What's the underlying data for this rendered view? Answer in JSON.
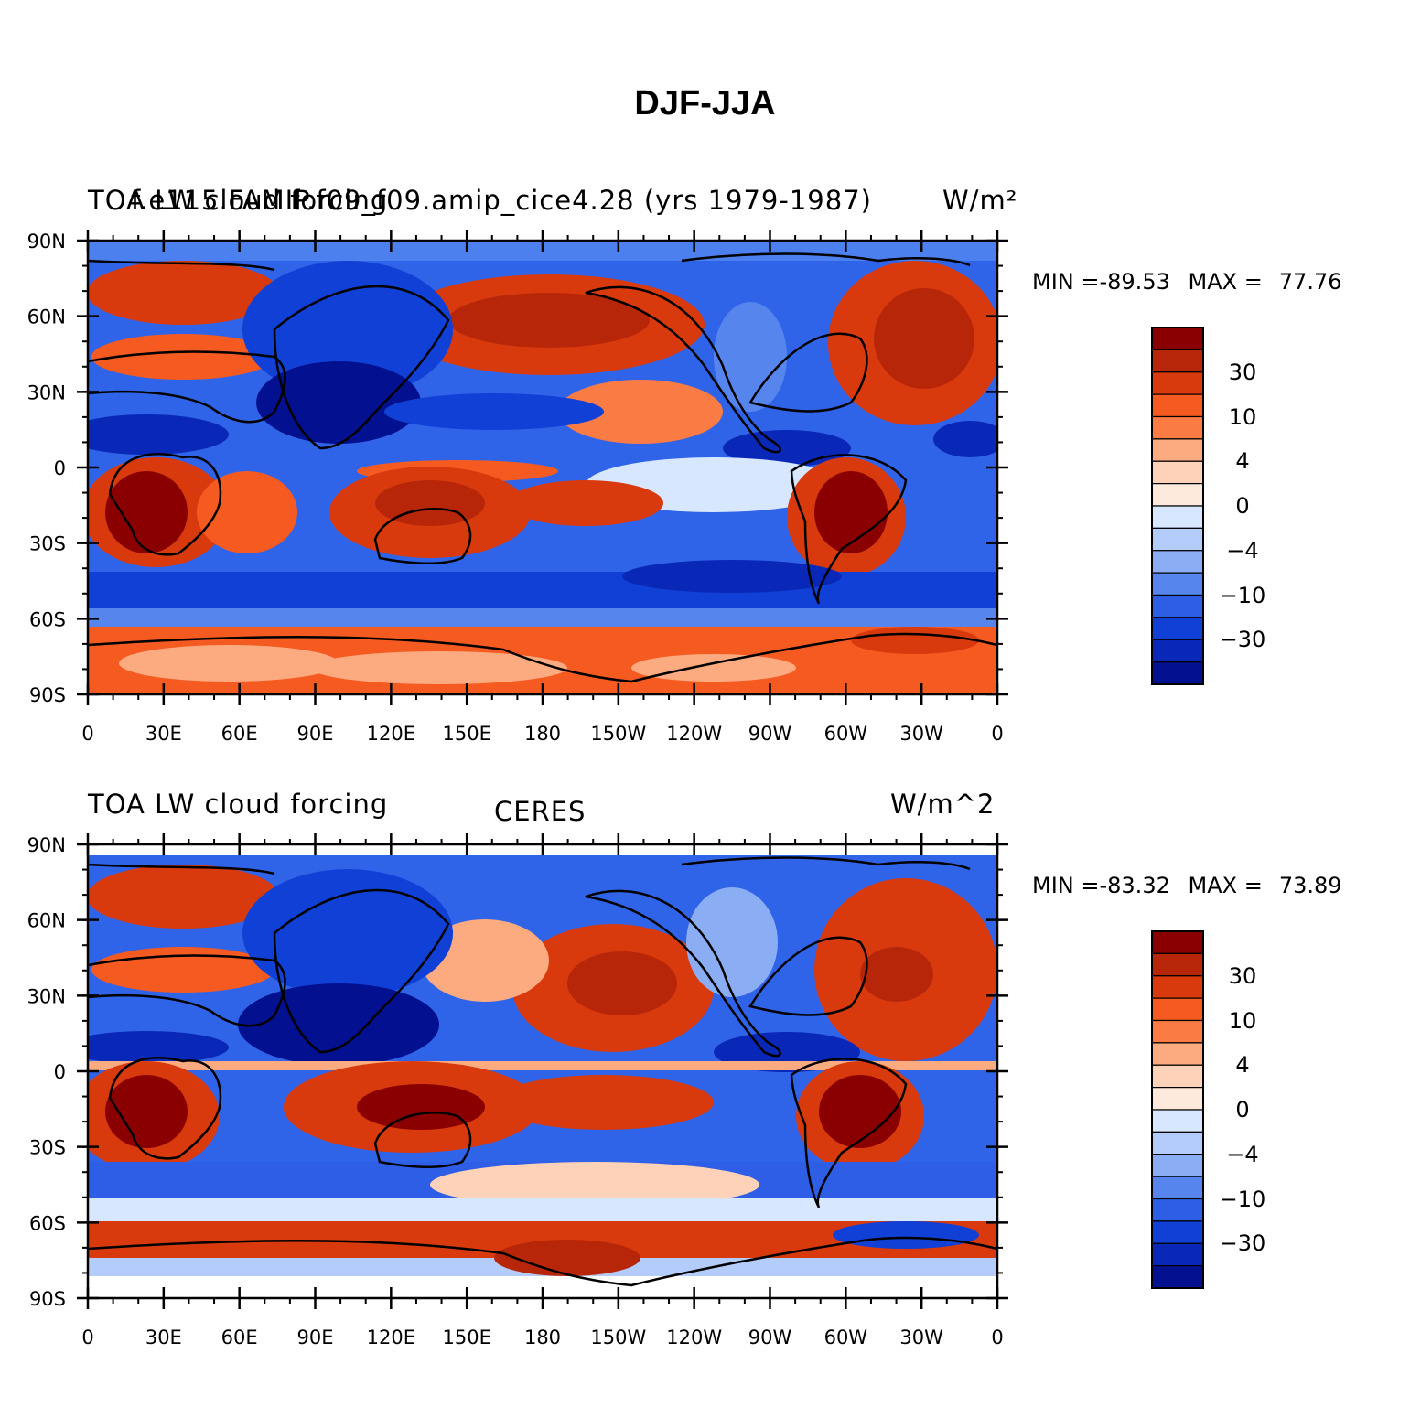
{
  "title": "DJF-JJA",
  "panels": [
    {
      "id": "model",
      "left_label": "TOA LW cloud forcing",
      "center_label": "f.e115.FAMIP.f09_f09.amip_cice4.28 (yrs 1979-1987)",
      "right_label": "W/m²",
      "min_label": "MIN = ",
      "min_value": "-89.53",
      "max_label": "MAX = ",
      "max_value": "77.76"
    },
    {
      "id": "obs",
      "left_label": "TOA LW cloud forcing",
      "center_label": "CERES",
      "right_label": "W/m^2",
      "min_label": "MIN = ",
      "min_value": "-83.32",
      "max_label": "MAX = ",
      "max_value": "73.89"
    }
  ],
  "map_axes": {
    "lat_ticks": [
      "90N",
      "60N",
      "30N",
      "0",
      "30S",
      "60S",
      "90S"
    ],
    "lon_ticks": [
      "0",
      "30E",
      "60E",
      "90E",
      "120E",
      "150E",
      "180",
      "150W",
      "120W",
      "90W",
      "60W",
      "30W",
      "0"
    ]
  },
  "colorbar": {
    "colors": [
      "#8a0000",
      "#b8260a",
      "#d93a0d",
      "#f55a20",
      "#fb7b45",
      "#fcaa80",
      "#fdd2b8",
      "#feeadd",
      "#d6e7ff",
      "#b3ccfa",
      "#8aadf3",
      "#5585ed",
      "#2e5ee6",
      "#1040d6",
      "#0a28b8",
      "#03108f"
    ],
    "tick_labels": [
      "30",
      "10",
      "4",
      "0",
      "-4",
      "-10",
      "-30"
    ]
  },
  "colors": {
    "positive_strong": "#8a0000",
    "positive": "#d93a0d",
    "neutral": "#feeadd",
    "negative": "#2e5ee6",
    "negative_strong": "#03108f"
  }
}
